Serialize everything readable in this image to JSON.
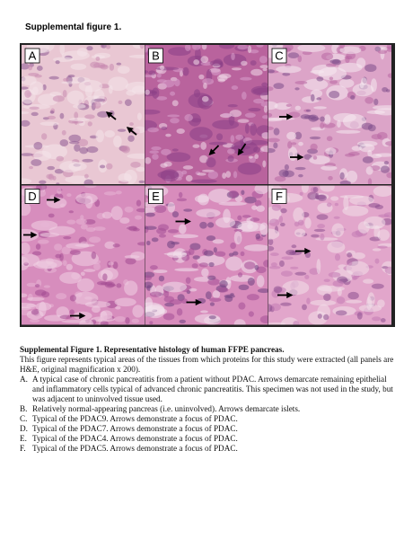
{
  "header": {
    "title": "Supplemental figure 1."
  },
  "figure": {
    "panels": [
      "A",
      "B",
      "C",
      "D",
      "E",
      "F"
    ]
  },
  "caption": {
    "title": "Supplemental Figure 1. Representative histology of human FFPE pancreas.",
    "body": "This figure represents typical areas of the tissues from which proteins for this study were extracted (all panels are H&E, original magnification x 200).",
    "items": [
      {
        "label": "A.",
        "text": "A typical case of chronic pancreatitis from a patient without PDAC. Arrows demarcate remaining epithelial and inflammatory cells typical of advanced chronic pancreatitis. This specimen was not used in the study, but was adjacent to uninvolved tissue used."
      },
      {
        "label": "B.",
        "text": "Relatively normal-appearing pancreas (i.e. uninvolved). Arrows demarcate islets."
      },
      {
        "label": "C.",
        "text": "Typical of the PDAC9. Arrows demonstrate a focus of PDAC."
      },
      {
        "label": "D.",
        "text": "Typical of the PDAC7. Arrows demonstrate a focus of PDAC."
      },
      {
        "label": "E.",
        "text": "Typical of the PDAC4. Arrows demonstrate a focus of PDAC."
      },
      {
        "label": "F.",
        "text": "Typical of the PDAC5. Arrows demonstrate a focus of PDAC."
      }
    ]
  }
}
